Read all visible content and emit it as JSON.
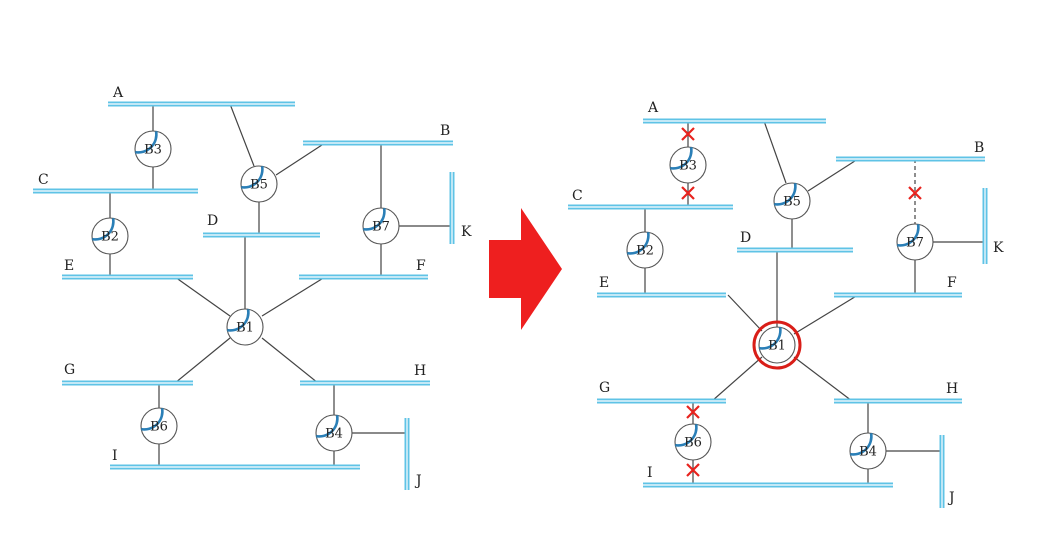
{
  "colors": {
    "lan": "#5fc3e6",
    "lan_stroke": "#9fdcf2",
    "link": "#444444",
    "bridge_port_accent": "#2a7fb7",
    "blocked": "#e8231e",
    "root_ring": "#d91e18",
    "arrow": "#ee1f1f"
  },
  "icons": {
    "arrow": "right-arrow-icon",
    "blocked_port": "x-mark-icon",
    "root_bridge": "red-ring-icon"
  },
  "diagrams": [
    {
      "name": "original",
      "lans": [
        "A",
        "B",
        "C",
        "D",
        "E",
        "F",
        "G",
        "H",
        "I",
        "J",
        "K"
      ],
      "bridges": [
        "B1",
        "B2",
        "B3",
        "B4",
        "B5",
        "B6",
        "B7"
      ]
    },
    {
      "name": "spanning-tree",
      "lans": [
        "A",
        "B",
        "C",
        "D",
        "E",
        "F",
        "G",
        "H",
        "I",
        "J",
        "K"
      ],
      "bridges": [
        "B1",
        "B2",
        "B3",
        "B4",
        "B5",
        "B6",
        "B7"
      ],
      "root_bridge": "B1",
      "blocked_links": [
        {
          "bridge": "B3",
          "lan": "A"
        },
        {
          "bridge": "B3",
          "lan": "C"
        },
        {
          "bridge": "B6",
          "lan": "G"
        },
        {
          "bridge": "B6",
          "lan": "I"
        },
        {
          "bridge": "B7",
          "lan": "B"
        }
      ]
    }
  ]
}
